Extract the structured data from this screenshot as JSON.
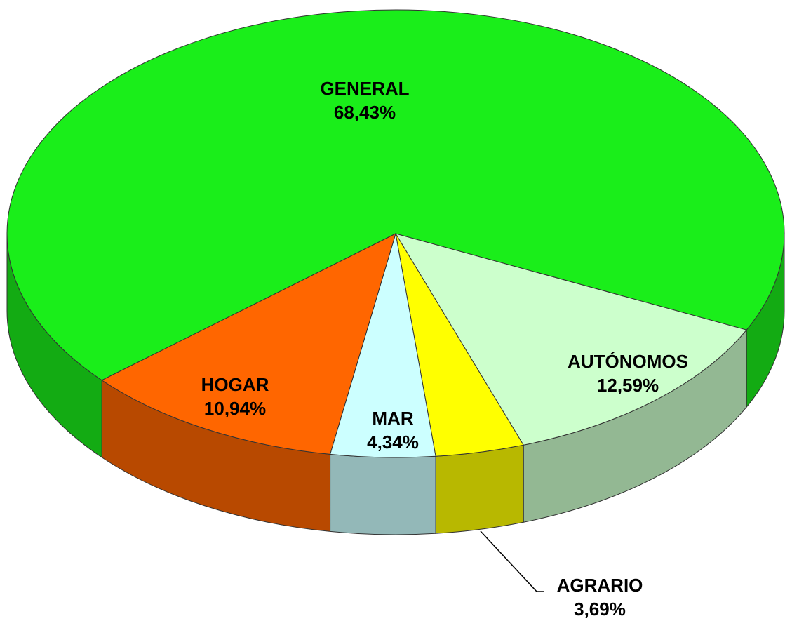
{
  "chart_data": {
    "type": "pie",
    "categories": [
      "GENERAL",
      "AUTÓNOMOS",
      "AGRARIO",
      "MAR",
      "HOGAR"
    ],
    "values": [
      68.43,
      12.59,
      3.69,
      4.34,
      10.94
    ],
    "value_labels": [
      "68,43%",
      "12,59%",
      "3,69%",
      "4,34%",
      "10,94%"
    ],
    "colors": [
      "#1aee1a",
      "#ccffcc",
      "#ffff00",
      "#ccffff",
      "#ff6600"
    ]
  }
}
